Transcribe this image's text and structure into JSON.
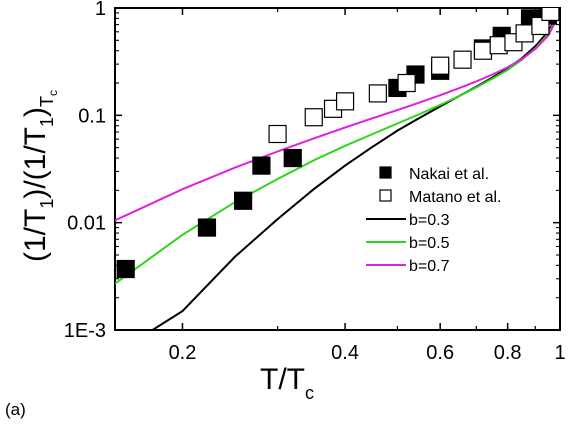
{
  "panel_label": "(a)",
  "chart_data": {
    "type": "scatter",
    "title": "",
    "xscale": "log",
    "yscale": "log",
    "xlim": [
      0.15,
      1.0
    ],
    "ylim": [
      0.001,
      1.0
    ],
    "grid": false,
    "legend_position": "center-right",
    "xlabel": {
      "main": "T/T",
      "sub": "c"
    },
    "ylabel": {
      "main": "(1/T",
      "sub1": "1",
      "mid": ")/(1/T",
      "sub2": "1",
      "end": ")",
      "sub3": "T",
      "sub4": "c"
    },
    "x_ticks": [
      {
        "value": 0.2,
        "label": "0.2"
      },
      {
        "value": 0.4,
        "label": "0.4"
      },
      {
        "value": 0.6,
        "label": "0.6"
      },
      {
        "value": 0.8,
        "label": "0.8"
      },
      {
        "value": 1.0,
        "label": "1"
      }
    ],
    "x_minor_ticks": [
      0.3,
      0.5,
      0.7,
      0.9
    ],
    "y_ticks": [
      {
        "value": 0.001,
        "label": "1E-3"
      },
      {
        "value": 0.01,
        "label": "0.01"
      },
      {
        "value": 0.1,
        "label": "0.1"
      },
      {
        "value": 1.0,
        "label": "1"
      }
    ],
    "series": [
      {
        "name": "Nakai et al.",
        "kind": "marker",
        "marker": "filled-square",
        "color": "#000000",
        "x": [
          0.157,
          0.222,
          0.259,
          0.28,
          0.32,
          0.5,
          0.54,
          0.6,
          0.72,
          0.78,
          0.88,
          0.95
        ],
        "y": [
          0.0037,
          0.009,
          0.016,
          0.034,
          0.04,
          0.18,
          0.24,
          0.26,
          0.42,
          0.55,
          0.8,
          0.85
        ]
      },
      {
        "name": "Matano et al.",
        "kind": "marker",
        "marker": "open-square",
        "color": "#000000",
        "x": [
          0.3,
          0.35,
          0.38,
          0.4,
          0.46,
          0.52,
          0.6,
          0.66,
          0.72,
          0.77,
          0.82,
          0.86,
          0.92,
          0.96
        ],
        "y": [
          0.067,
          0.096,
          0.115,
          0.135,
          0.16,
          0.2,
          0.29,
          0.33,
          0.4,
          0.45,
          0.48,
          0.58,
          0.68,
          0.92
        ]
      },
      {
        "name": "b=0.3",
        "kind": "line",
        "color": "#000000",
        "x": [
          0.176,
          0.2,
          0.25,
          0.3,
          0.35,
          0.4,
          0.45,
          0.5,
          0.55,
          0.6,
          0.65,
          0.7,
          0.75,
          0.8,
          0.85,
          0.9,
          0.95,
          0.98
        ],
        "y": [
          0.001,
          0.0015,
          0.0048,
          0.0108,
          0.0205,
          0.034,
          0.051,
          0.072,
          0.095,
          0.121,
          0.151,
          0.185,
          0.225,
          0.275,
          0.34,
          0.44,
          0.6,
          0.78
        ]
      },
      {
        "name": "b=0.5",
        "kind": "line",
        "color": "#2ed61a",
        "x": [
          0.15,
          0.2,
          0.25,
          0.3,
          0.35,
          0.4,
          0.45,
          0.5,
          0.55,
          0.6,
          0.65,
          0.7,
          0.75,
          0.8,
          0.85,
          0.9,
          0.95,
          0.98
        ],
        "y": [
          0.0027,
          0.0077,
          0.0155,
          0.0255,
          0.038,
          0.052,
          0.067,
          0.084,
          0.103,
          0.125,
          0.151,
          0.182,
          0.22,
          0.265,
          0.33,
          0.42,
          0.57,
          0.76
        ]
      },
      {
        "name": "b=0.7",
        "kind": "line",
        "color": "#e020e0",
        "x": [
          0.15,
          0.2,
          0.25,
          0.3,
          0.35,
          0.4,
          0.45,
          0.5,
          0.55,
          0.6,
          0.65,
          0.7,
          0.75,
          0.8,
          0.85,
          0.9,
          0.95,
          0.98
        ],
        "y": [
          0.0105,
          0.0205,
          0.0325,
          0.046,
          0.061,
          0.077,
          0.094,
          0.112,
          0.132,
          0.154,
          0.179,
          0.207,
          0.24,
          0.28,
          0.335,
          0.415,
          0.55,
          0.74
        ]
      }
    ]
  }
}
